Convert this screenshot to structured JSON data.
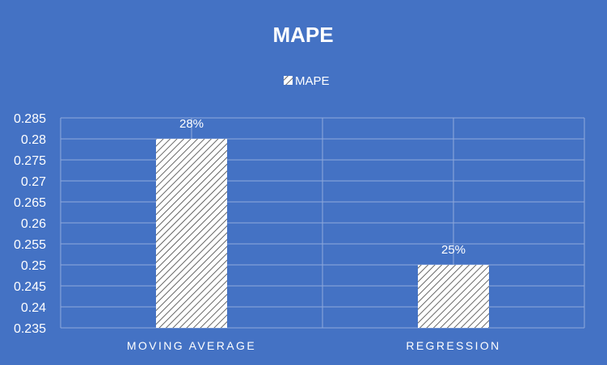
{
  "chart_data": {
    "type": "bar",
    "title": "MAPE",
    "categories": [
      "MOVING AVERAGE",
      "REGRESSION"
    ],
    "series": [
      {
        "name": "MAPE",
        "values": [
          0.28,
          0.25
        ]
      }
    ],
    "data_labels": [
      "28%",
      "25%"
    ],
    "xlabel": "",
    "ylabel": "",
    "ylim": [
      0.235,
      0.285
    ],
    "yticks": [
      0.235,
      0.24,
      0.245,
      0.25,
      0.255,
      0.26,
      0.265,
      0.27,
      0.275,
      0.28,
      0.285
    ],
    "ytick_labels": [
      "0.235",
      "0.24",
      "0.245",
      "0.25",
      "0.255",
      "0.26",
      "0.265",
      "0.27",
      "0.275",
      "0.28",
      "0.285"
    ],
    "grid": true,
    "legend_position": "top",
    "bar_pattern": "diagonal-hatch",
    "colors": {
      "background": "#4472C4",
      "bar_fill": "#ffffff",
      "bar_hatch": "#404040",
      "gridline": "#8fa9dc",
      "text": "#ffffff"
    }
  }
}
